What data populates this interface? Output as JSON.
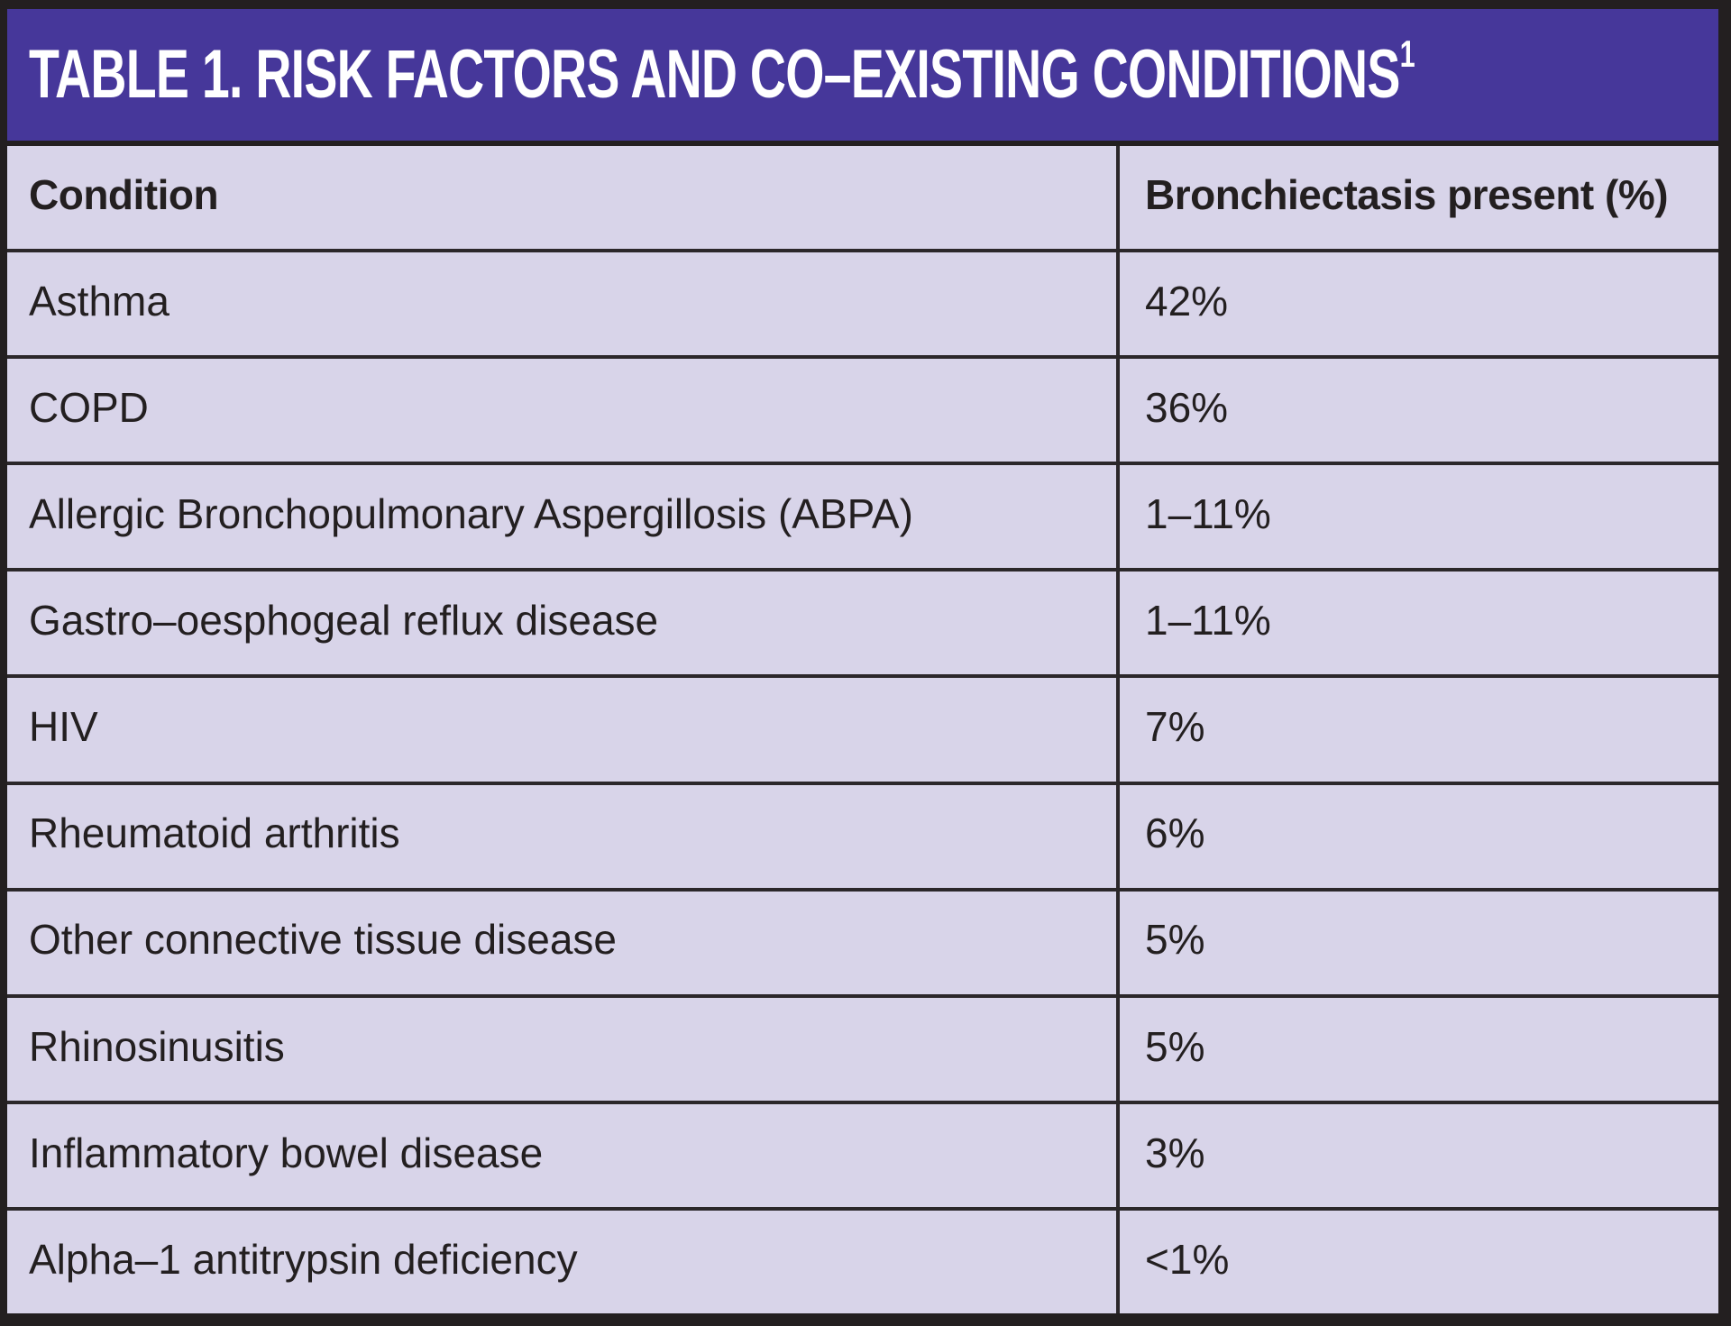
{
  "table": {
    "title": "TABLE 1. RISK FACTORS AND CO–EXISTING CONDITIONS",
    "title_sup": "1",
    "columns": [
      "Condition",
      "Bronchiectasis present (%)"
    ],
    "rows": [
      {
        "condition": "Asthma",
        "value": "42%"
      },
      {
        "condition": "COPD",
        "value": "36%"
      },
      {
        "condition": "Allergic Bronchopulmonary Aspergillosis (ABPA)",
        "value": "1–11%"
      },
      {
        "condition": "Gastro–oesphogeal reflux disease",
        "value": "1–11%"
      },
      {
        "condition": "HIV",
        "value": "7%"
      },
      {
        "condition": "Rheumatoid arthritis",
        "value": "6%"
      },
      {
        "condition": "Other connective tissue disease",
        "value": "5%"
      },
      {
        "condition": "Rhinosinusitis",
        "value": "5%"
      },
      {
        "condition": "Inflammatory bowel disease",
        "value": "3%"
      },
      {
        "condition": "Alpha–1 antitrypsin deficiency",
        "value": "<1%"
      }
    ],
    "colors": {
      "title_bar_bg": "#46379a",
      "title_text": "#ffffff",
      "body_bg": "#d8d4e9",
      "rule": "#2b272a",
      "outer_border": "#231f20",
      "body_text": "#231f20"
    }
  },
  "chart_data": {
    "type": "table",
    "title": "TABLE 1. RISK FACTORS AND CO–EXISTING CONDITIONS¹",
    "columns": [
      "Condition",
      "Bronchiectasis present (%)"
    ],
    "rows": [
      [
        "Asthma",
        "42%"
      ],
      [
        "COPD",
        "36%"
      ],
      [
        "Allergic Bronchopulmonary Aspergillosis (ABPA)",
        "1–11%"
      ],
      [
        "Gastro–oesphogeal reflux disease",
        "1–11%"
      ],
      [
        "HIV",
        "7%"
      ],
      [
        "Rheumatoid arthritis",
        "6%"
      ],
      [
        "Other connective tissue disease",
        "5%"
      ],
      [
        "Rhinosinusitis",
        "5%"
      ],
      [
        "Inflammatory bowel disease",
        "3%"
      ],
      [
        "Alpha–1 antitrypsin deficiency",
        "<1%"
      ]
    ]
  }
}
